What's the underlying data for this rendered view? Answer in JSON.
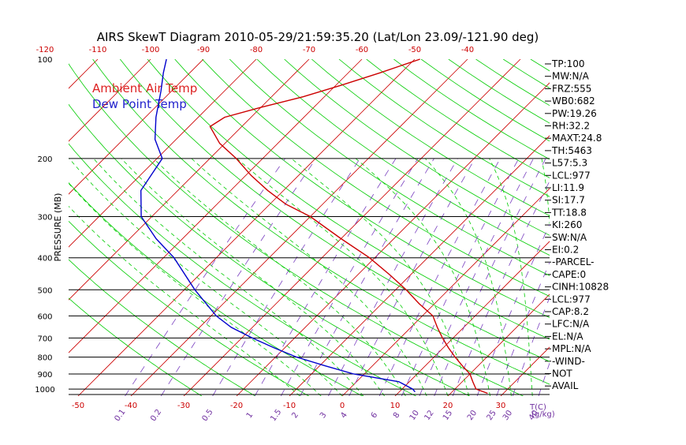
{
  "chart_data": {
    "type": "line",
    "title": "AIRS SkewT Diagram 2010-05-29/21:59:35.20 (Lat/Lon 23.09/-121.90 deg)",
    "ylabel": "PRESSURE (MB)",
    "y_scale": "log",
    "ylim": [
      1050,
      100
    ],
    "pressure_ticks": [
      100,
      200,
      300,
      400,
      500,
      600,
      700,
      800,
      900,
      1000
    ],
    "bottom_temp_ticks": [
      -50,
      -40,
      -30,
      -20,
      -10,
      0,
      10,
      20,
      30
    ],
    "top_temp_ticks": [
      -120,
      -110,
      -100,
      -90,
      -80,
      -70,
      -60,
      -50,
      -40
    ],
    "temp_unit_label": "T(C)",
    "mixing_ratio_ticks": [
      "0.1",
      "0.2",
      "0.5",
      "1",
      "1.5",
      "2",
      "3",
      "4",
      "6",
      "8",
      "10",
      "12",
      "15",
      "20",
      "25",
      "30",
      "40"
    ],
    "mixing_ratio_unit": "(g/kg)",
    "legend": [
      {
        "label": "Ambient Air Temp",
        "color": "#dd2222"
      },
      {
        "label": "Dew Point Temp",
        "color": "#2222cc"
      }
    ],
    "series": [
      {
        "name": "Ambient Air Temp",
        "color": "#cc0000",
        "points": [
          {
            "p": 1030,
            "t": 27
          },
          {
            "p": 1000,
            "t": 24
          },
          {
            "p": 950,
            "t": 22
          },
          {
            "p": 900,
            "t": 20
          },
          {
            "p": 850,
            "t": 17
          },
          {
            "p": 800,
            "t": 14
          },
          {
            "p": 750,
            "t": 11
          },
          {
            "p": 700,
            "t": 8
          },
          {
            "p": 650,
            "t": 5
          },
          {
            "p": 600,
            "t": 2
          },
          {
            "p": 550,
            "t": -3
          },
          {
            "p": 500,
            "t": -8
          },
          {
            "p": 450,
            "t": -14
          },
          {
            "p": 400,
            "t": -21
          },
          {
            "p": 350,
            "t": -30
          },
          {
            "p": 300,
            "t": -40
          },
          {
            "p": 275,
            "t": -47
          },
          {
            "p": 250,
            "t": -53
          },
          {
            "p": 225,
            "t": -59
          },
          {
            "p": 200,
            "t": -65
          },
          {
            "p": 180,
            "t": -71
          },
          {
            "p": 160,
            "t": -76
          },
          {
            "p": 150,
            "t": -75
          },
          {
            "p": 140,
            "t": -70
          },
          {
            "p": 130,
            "t": -64
          },
          {
            "p": 120,
            "t": -59
          },
          {
            "p": 110,
            "t": -54
          },
          {
            "p": 100,
            "t": -49
          }
        ]
      },
      {
        "name": "Dew Point Temp",
        "color": "#0000cc",
        "points": [
          {
            "p": 1020,
            "t": 13
          },
          {
            "p": 1000,
            "t": 12
          },
          {
            "p": 950,
            "t": 8
          },
          {
            "p": 900,
            "t": -2
          },
          {
            "p": 850,
            "t": -9
          },
          {
            "p": 800,
            "t": -16
          },
          {
            "p": 750,
            "t": -22
          },
          {
            "p": 700,
            "t": -28
          },
          {
            "p": 650,
            "t": -34
          },
          {
            "p": 600,
            "t": -39
          },
          {
            "p": 500,
            "t": -48
          },
          {
            "p": 400,
            "t": -58
          },
          {
            "p": 350,
            "t": -65
          },
          {
            "p": 300,
            "t": -72
          },
          {
            "p": 250,
            "t": -77
          },
          {
            "p": 200,
            "t": -79
          },
          {
            "p": 175,
            "t": -84
          },
          {
            "p": 150,
            "t": -88
          },
          {
            "p": 125,
            "t": -92
          },
          {
            "p": 110,
            "t": -95
          },
          {
            "p": 100,
            "t": -97
          }
        ]
      }
    ]
  },
  "indices": [
    "TP:100",
    "MW:N/A",
    "FRZ:555",
    "WB0:682",
    "PW:19.26",
    "RH:32.2",
    "MAXT:24.8",
    "TH:5463",
    "L57:5.3",
    "LCL:977",
    "LI:11.9",
    "SI:17.7",
    "TT:18.8",
    "KI:260",
    "SW:N/A",
    "EI:0.2",
    "-PARCEL-",
    "CAPE:0",
    "CINH:10828",
    "LCL:977",
    "CAP:8.2",
    "LFC:N/A",
    "EL:N/A",
    "MPL:N/A",
    "-WIND-",
    "NOT",
    "AVAIL"
  ],
  "colors": {
    "isotherm": "#cc0000",
    "dry_adiabat": "#00cc00",
    "moist_adiabat": "#00cc00",
    "mixing_ratio": "#7a40c0",
    "isobar": "#000000"
  }
}
